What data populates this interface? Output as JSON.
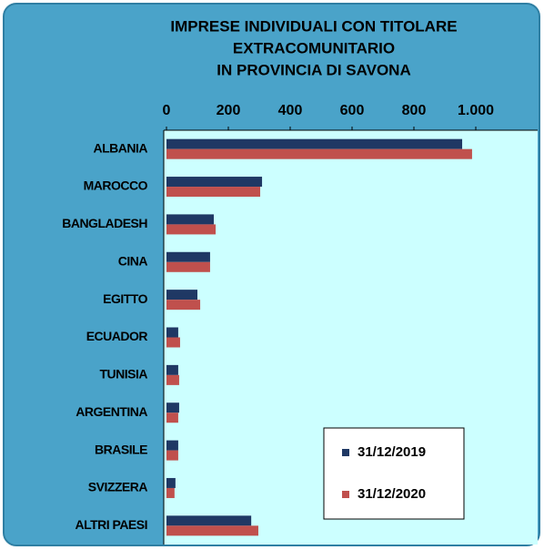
{
  "chart_data": {
    "type": "hbar",
    "title": [
      "IMPRESE INDIVIDUALI CON TITOLARE",
      "EXTRACOMUNITARIO",
      "IN PROVINCIA DI SAVONA"
    ],
    "categories": [
      "ALBANIA",
      "MAROCCO",
      "BANGLADESH",
      "CINA",
      "EGITTO",
      "ECUADOR",
      "TUNISIA",
      "ARGENTINA",
      "BRASILE",
      "SVIZZERA",
      "ALTRI PAESI"
    ],
    "series": [
      {
        "name": "31/12/2019",
        "color": "#1f3864",
        "values": [
          956,
          309,
          153,
          141,
          100,
          38,
          38,
          41,
          38,
          29,
          274
        ]
      },
      {
        "name": "31/12/2020",
        "color": "#c0504d",
        "values": [
          988,
          303,
          159,
          141,
          109,
          44,
          41,
          38,
          38,
          26,
          297
        ]
      }
    ],
    "xlim": [
      0,
      1200
    ],
    "xticks": [
      0,
      200,
      400,
      600,
      800,
      {
        "value": 1000,
        "label": "1.000"
      }
    ],
    "legend": "lower right"
  }
}
